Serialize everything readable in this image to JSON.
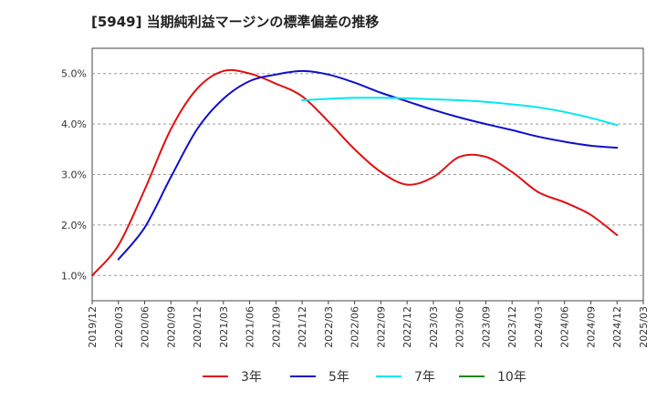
{
  "chart_data": {
    "type": "line",
    "title": "[5949]  当期純利益マージンの標準偏差の推移",
    "xlabel": "",
    "ylabel": "",
    "x_ticks": [
      "2019/12",
      "2020/03",
      "2020/06",
      "2020/09",
      "2020/12",
      "2021/03",
      "2021/06",
      "2021/09",
      "2021/12",
      "2022/03",
      "2022/06",
      "2022/09",
      "2022/12",
      "2023/03",
      "2023/06",
      "2023/09",
      "2023/12",
      "2024/03",
      "2024/06",
      "2024/09",
      "2024/12",
      "2025/03"
    ],
    "y_ticks": [
      "1.0%",
      "2.0%",
      "3.0%",
      "4.0%",
      "5.0%"
    ],
    "ylim": [
      0.5,
      5.5
    ],
    "y_unit": "%",
    "grid": "horizontal dashed",
    "legend_position": "bottom",
    "series": [
      {
        "name": "3年",
        "color": "#e01010",
        "x": [
          "2019/12",
          "2020/03",
          "2020/06",
          "2020/09",
          "2020/12",
          "2021/03",
          "2021/06",
          "2021/09",
          "2021/12",
          "2022/03",
          "2022/06",
          "2022/09",
          "2022/12",
          "2023/03",
          "2023/06",
          "2023/09",
          "2023/12",
          "2024/03",
          "2024/06",
          "2024/09",
          "2024/12"
        ],
        "values": [
          1.0,
          1.6,
          2.7,
          3.9,
          4.7,
          5.05,
          5.0,
          4.8,
          4.55,
          4.05,
          3.5,
          3.05,
          2.8,
          2.95,
          3.35,
          3.35,
          3.05,
          2.65,
          2.45,
          2.2,
          1.8
        ]
      },
      {
        "name": "5年",
        "color": "#1010c8",
        "x": [
          "2020/03",
          "2020/06",
          "2020/09",
          "2020/12",
          "2021/03",
          "2021/06",
          "2021/09",
          "2021/12",
          "2022/03",
          "2022/06",
          "2022/09",
          "2022/12",
          "2023/03",
          "2023/06",
          "2023/09",
          "2023/12",
          "2024/03",
          "2024/06",
          "2024/09",
          "2024/12"
        ],
        "values": [
          1.32,
          1.95,
          2.95,
          3.9,
          4.5,
          4.85,
          4.98,
          5.05,
          4.98,
          4.82,
          4.62,
          4.45,
          4.28,
          4.13,
          4.0,
          3.88,
          3.75,
          3.65,
          3.57,
          3.53
        ]
      },
      {
        "name": "7年",
        "color": "#00e8f0",
        "x": [
          "2021/12",
          "2022/03",
          "2022/06",
          "2022/09",
          "2022/12",
          "2023/03",
          "2023/06",
          "2023/09",
          "2023/12",
          "2024/03",
          "2024/06",
          "2024/09",
          "2024/12"
        ],
        "values": [
          4.47,
          4.5,
          4.52,
          4.52,
          4.51,
          4.49,
          4.47,
          4.44,
          4.39,
          4.33,
          4.24,
          4.12,
          3.98
        ]
      },
      {
        "name": "10年",
        "color": "#1a8a1a",
        "x": [],
        "values": []
      }
    ]
  }
}
